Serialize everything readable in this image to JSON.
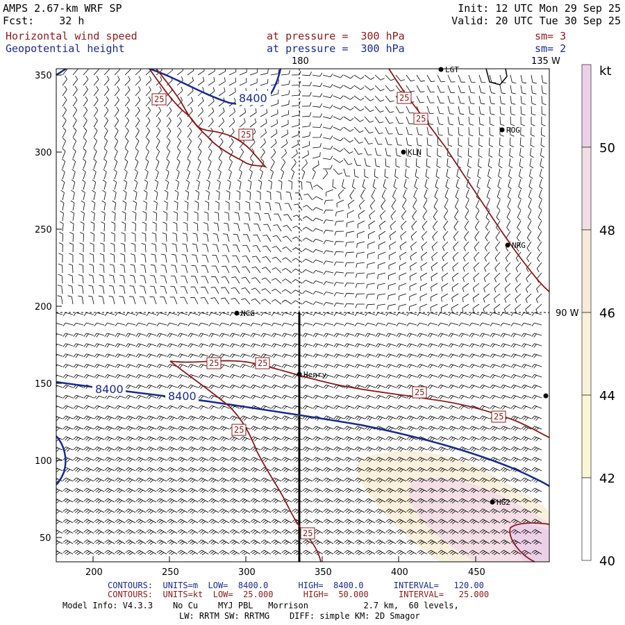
{
  "header": {
    "title": "AMPS 2.67-km WRF SP",
    "fcst": "Fcst:    32 h",
    "init": "Init: 12 UTC Mon 29 Sep 25",
    "valid": "Valid: 20 UTC Tue 30 Sep 25",
    "field1": "Horizontal wind speed",
    "field1_level": "at pressure =  300 hPa",
    "field1_sm": "sm= 3",
    "field2": "Geopotential height",
    "field2_level": "at pressure =  300 hPa",
    "field2_sm": "sm= 2"
  },
  "map": {
    "meridian_label": "180",
    "lon_label_top": "135 W",
    "lon_label_right": "90 W",
    "x_ticks": [
      "200",
      "250",
      "300",
      "350",
      "400",
      "450"
    ],
    "y_ticks": [
      "50",
      "100",
      "150",
      "200",
      "250",
      "300",
      "350"
    ],
    "stations": [
      "LGT",
      "ROG",
      "KLN",
      "NRG",
      "NCG",
      "Henry",
      "HG2"
    ],
    "height_contour_label": "8400",
    "speed_contour_label": "25",
    "colors": {
      "height": "#1a2a8c",
      "speed": "#8b1a1a",
      "barb": "#000000"
    }
  },
  "colorbar": {
    "unit": "kt",
    "labels": [
      "50",
      "48",
      "46",
      "44",
      "42",
      "40"
    ],
    "colors": [
      "#ecd0e8",
      "#f2dde6",
      "#f7e9dc",
      "#f9f1d8",
      "#fbf6d4",
      "#ffffff"
    ]
  },
  "footer": {
    "line1_blue": "CONTOURS:  UNITS=m  LOW=  8400.0      HIGH=  8400.0      INTERVAL=   120.00",
    "line2_red": "CONTOURS:  UNITS=kt  LOW=  25.000      HIGH=  50.000      INTERVAL=   25.000",
    "line3": "Model Info: V4.3.3    No Cu    MYJ PBL   Morrison           2.7 km,  60 levels,",
    "line4": "LW: RRTM SW: RRTMG    DIFF: simple KM: 2D Smagor"
  }
}
